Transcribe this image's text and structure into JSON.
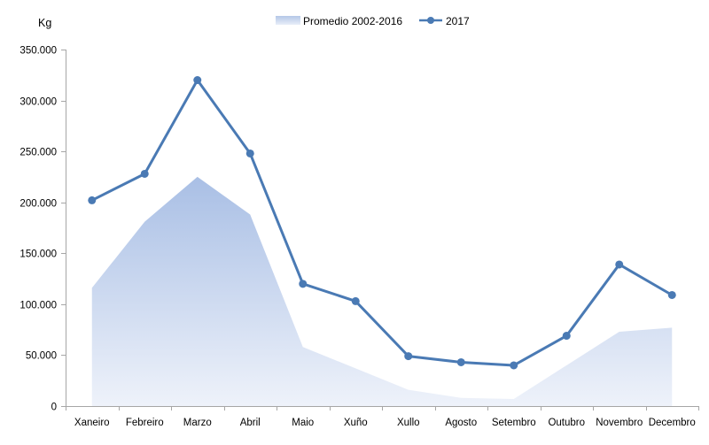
{
  "chart_data": {
    "type": "line",
    "ylabel": "Kg",
    "ylim": [
      0,
      350000
    ],
    "yticks": [
      "0",
      "50.000",
      "100.000",
      "150.000",
      "200.000",
      "250.000",
      "300.000",
      "350.000"
    ],
    "categories": [
      "Xaneiro",
      "Febreiro",
      "Marzo",
      "Abril",
      "Maio",
      "Xuño",
      "Xullo",
      "Agosto",
      "Setembro",
      "Outubro",
      "Novembro",
      "Decembro"
    ],
    "series": [
      {
        "name": "Promedio 2002-2016",
        "type": "area",
        "color": "#b4c7e7",
        "values": [
          116000,
          181000,
          225000,
          188000,
          58000,
          37000,
          16000,
          8000,
          7000,
          40000,
          73000,
          77000
        ]
      },
      {
        "name": "2017",
        "type": "line",
        "color": "#4a7ab4",
        "values": [
          202000,
          228000,
          320000,
          248000,
          120000,
          103000,
          49000,
          43000,
          40000,
          69000,
          139000,
          109000
        ]
      }
    ],
    "legend_position": "top-center",
    "grid": false
  }
}
